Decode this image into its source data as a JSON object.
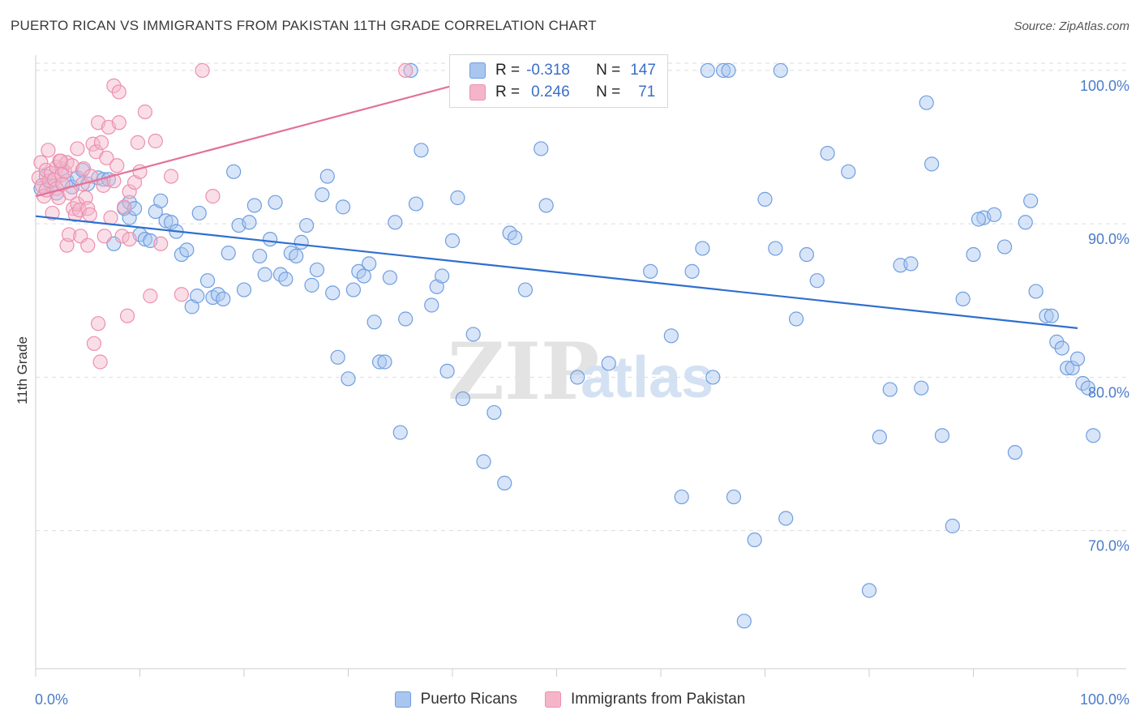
{
  "header": {
    "title": "PUERTO RICAN VS IMMIGRANTS FROM PAKISTAN 11TH GRADE CORRELATION CHART",
    "source": "Source: ZipAtlas.com"
  },
  "watermark": {
    "part1": "ZIP",
    "part2": "atlas"
  },
  "legend": {
    "rows": [
      {
        "r_label": "R =",
        "r_value": "-0.318",
        "n_label": "N =",
        "n_value": "147"
      },
      {
        "r_label": "R =",
        "r_value": "0.246",
        "n_label": "N =",
        "n_value": "71"
      }
    ]
  },
  "bottom_legend": {
    "items": [
      {
        "label": "Puerto Ricans"
      },
      {
        "label": "Immigrants from Pakistan"
      }
    ]
  },
  "colors": {
    "blue_fill": "#a9c6ef",
    "blue_stroke": "#6f9ee0",
    "blue_line": "#2f6fcf",
    "pink_fill": "#f5b5c9",
    "pink_stroke": "#ec8fae",
    "pink_line": "#e3719a",
    "grid": "#dddddd",
    "tick_text": "#4a7cc9"
  },
  "chart_data": {
    "type": "scatter",
    "ylabel": "11th Grade",
    "xlim": [
      0,
      100
    ],
    "ylim": [
      61,
      101
    ],
    "x_tick_labels": {
      "min": "0.0%",
      "max": "100.0%"
    },
    "y_ticks": [
      {
        "value": 100,
        "label": "100.0%"
      },
      {
        "value": 90,
        "label": "90.0%"
      },
      {
        "value": 80,
        "label": "80.0%"
      },
      {
        "value": 70,
        "label": "70.0%"
      }
    ],
    "grid": true,
    "series": [
      {
        "name": "Puerto Ricans",
        "r": -0.318,
        "n": 147,
        "trend": {
          "x0": 0,
          "y0": 90.5,
          "x1": 100,
          "y1": 83.2
        },
        "points": [
          [
            0.5,
            92.3
          ],
          [
            1,
            93.1
          ],
          [
            1.5,
            92.5
          ],
          [
            2,
            92.0
          ],
          [
            2.5,
            93.6
          ],
          [
            3,
            92.8
          ],
          [
            3.5,
            92.4
          ],
          [
            4,
            93.0
          ],
          [
            4.5,
            93.5
          ],
          [
            5,
            92.6
          ],
          [
            6,
            93.0
          ],
          [
            6.5,
            92.9
          ],
          [
            7,
            92.9
          ],
          [
            7.5,
            88.7
          ],
          [
            8.5,
            91.0
          ],
          [
            9,
            90.4
          ],
          [
            9,
            91.4
          ],
          [
            9.5,
            91.0
          ],
          [
            10,
            89.3
          ],
          [
            10.5,
            89.0
          ],
          [
            11,
            88.9
          ],
          [
            11.5,
            90.8
          ],
          [
            12,
            91.5
          ],
          [
            12.5,
            90.2
          ],
          [
            13,
            90.1
          ],
          [
            13.5,
            89.5
          ],
          [
            14,
            88.0
          ],
          [
            14.5,
            88.3
          ],
          [
            15,
            84.6
          ],
          [
            15.5,
            85.3
          ],
          [
            15.7,
            90.7
          ],
          [
            16.5,
            86.3
          ],
          [
            17,
            85.2
          ],
          [
            17.5,
            85.4
          ],
          [
            18,
            85.1
          ],
          [
            18.5,
            88.1
          ],
          [
            19,
            93.4
          ],
          [
            19.5,
            89.9
          ],
          [
            20,
            85.7
          ],
          [
            20.5,
            90.1
          ],
          [
            21,
            91.2
          ],
          [
            21.5,
            87.9
          ],
          [
            22,
            86.7
          ],
          [
            22.5,
            89.0
          ],
          [
            23,
            91.4
          ],
          [
            23.5,
            86.7
          ],
          [
            24,
            86.4
          ],
          [
            24.5,
            88.1
          ],
          [
            25,
            87.9
          ],
          [
            25.5,
            88.8
          ],
          [
            26,
            89.9
          ],
          [
            26.5,
            86.0
          ],
          [
            27,
            87.0
          ],
          [
            27.5,
            91.9
          ],
          [
            28,
            93.1
          ],
          [
            28.5,
            85.5
          ],
          [
            29,
            81.3
          ],
          [
            29.5,
            91.1
          ],
          [
            30,
            79.9
          ],
          [
            30.5,
            85.7
          ],
          [
            31,
            86.9
          ],
          [
            31.5,
            86.6
          ],
          [
            32,
            87.4
          ],
          [
            32.5,
            83.6
          ],
          [
            33,
            81.0
          ],
          [
            33.5,
            81.0
          ],
          [
            34,
            86.5
          ],
          [
            34.5,
            90.1
          ],
          [
            35,
            76.4
          ],
          [
            35.5,
            83.8
          ],
          [
            36,
            100
          ],
          [
            36.5,
            91.3
          ],
          [
            37,
            94.8
          ],
          [
            38,
            84.7
          ],
          [
            38.5,
            85.9
          ],
          [
            39,
            86.6
          ],
          [
            39.5,
            80.4
          ],
          [
            40,
            88.9
          ],
          [
            40.5,
            91.7
          ],
          [
            41,
            78.6
          ],
          [
            42,
            82.8
          ],
          [
            43,
            74.5
          ],
          [
            44,
            77.7
          ],
          [
            45,
            73.1
          ],
          [
            45.5,
            89.4
          ],
          [
            46,
            89.1
          ],
          [
            47,
            85.7
          ],
          [
            48,
            100
          ],
          [
            48.5,
            94.9
          ],
          [
            49,
            91.2
          ],
          [
            51,
            100
          ],
          [
            52,
            80.0
          ],
          [
            53,
            100
          ],
          [
            55,
            80.9
          ],
          [
            58,
            100
          ],
          [
            59,
            86.9
          ],
          [
            60,
            100
          ],
          [
            61,
            82.7
          ],
          [
            62,
            72.2
          ],
          [
            63,
            86.9
          ],
          [
            64,
            88.4
          ],
          [
            65,
            80.0
          ],
          [
            66,
            100
          ],
          [
            67,
            72.2
          ],
          [
            68,
            64.1
          ],
          [
            69,
            69.4
          ],
          [
            70,
            91.6
          ],
          [
            71,
            88.4
          ],
          [
            72,
            70.8
          ],
          [
            73,
            83.8
          ],
          [
            74,
            88.0
          ],
          [
            75,
            86.3
          ],
          [
            76,
            94.6
          ],
          [
            78,
            93.4
          ],
          [
            80,
            66.1
          ],
          [
            81,
            76.1
          ],
          [
            82,
            79.2
          ],
          [
            83,
            87.3
          ],
          [
            84,
            87.4
          ],
          [
            85,
            79.3
          ],
          [
            86,
            93.9
          ],
          [
            87,
            76.2
          ],
          [
            88,
            70.3
          ],
          [
            89,
            85.1
          ],
          [
            90,
            88.0
          ],
          [
            91,
            90.4
          ],
          [
            92,
            90.6
          ],
          [
            93,
            88.5
          ],
          [
            94,
            75.1
          ],
          [
            95,
            90.1
          ],
          [
            95.5,
            91.5
          ],
          [
            96,
            85.6
          ],
          [
            97,
            84.0
          ],
          [
            97.5,
            84.0
          ],
          [
            98,
            82.3
          ],
          [
            98.5,
            81.9
          ],
          [
            99,
            80.6
          ],
          [
            99.5,
            80.6
          ],
          [
            100,
            81.2
          ],
          [
            100.5,
            79.6
          ],
          [
            101,
            79.3
          ],
          [
            101.5,
            76.2
          ],
          [
            85.5,
            97.9
          ],
          [
            71.5,
            100
          ],
          [
            66.5,
            100
          ],
          [
            90.5,
            90.3
          ],
          [
            64.5,
            100
          ]
        ]
      },
      {
        "name": "Immigrants from Pakistan",
        "r": 0.246,
        "n": 71,
        "trend": {
          "x0": 0,
          "y0": 91.8,
          "x1": 40,
          "y1": 99.0
        },
        "points": [
          [
            0.3,
            93.0
          ],
          [
            0.5,
            94.0
          ],
          [
            0.6,
            92.5
          ],
          [
            0.8,
            91.8
          ],
          [
            1,
            92.2
          ],
          [
            1,
            93.5
          ],
          [
            1.2,
            94.8
          ],
          [
            1.3,
            92.8
          ],
          [
            1.5,
            93.3
          ],
          [
            1.6,
            90.7
          ],
          [
            1.8,
            92.9
          ],
          [
            2,
            93.7
          ],
          [
            2,
            92.3
          ],
          [
            2.2,
            91.7
          ],
          [
            2.3,
            94.1
          ],
          [
            2.5,
            93.2
          ],
          [
            2.6,
            92.6
          ],
          [
            2.8,
            93.4
          ],
          [
            3,
            94.0
          ],
          [
            3,
            88.6
          ],
          [
            3.2,
            89.3
          ],
          [
            3.3,
            92.0
          ],
          [
            3.5,
            93.8
          ],
          [
            3.6,
            91.0
          ],
          [
            3.8,
            90.6
          ],
          [
            4,
            91.3
          ],
          [
            4,
            94.9
          ],
          [
            4.2,
            90.9
          ],
          [
            4.3,
            89.2
          ],
          [
            4.5,
            92.6
          ],
          [
            4.6,
            93.6
          ],
          [
            4.8,
            91.7
          ],
          [
            5,
            91.0
          ],
          [
            5,
            88.6
          ],
          [
            5.2,
            90.6
          ],
          [
            5.3,
            93.1
          ],
          [
            5.5,
            95.2
          ],
          [
            5.6,
            82.2
          ],
          [
            5.8,
            94.7
          ],
          [
            6,
            96.6
          ],
          [
            6,
            83.5
          ],
          [
            6.2,
            81.0
          ],
          [
            6.3,
            95.3
          ],
          [
            6.5,
            92.5
          ],
          [
            6.6,
            89.2
          ],
          [
            6.8,
            94.3
          ],
          [
            7,
            96.3
          ],
          [
            7.2,
            90.4
          ],
          [
            7.5,
            92.8
          ],
          [
            7.5,
            99.0
          ],
          [
            7.8,
            93.8
          ],
          [
            8,
            98.6
          ],
          [
            8,
            96.6
          ],
          [
            8.3,
            89.2
          ],
          [
            8.5,
            91.1
          ],
          [
            8.8,
            84.0
          ],
          [
            9,
            92.1
          ],
          [
            9,
            89.0
          ],
          [
            9.5,
            92.7
          ],
          [
            9.8,
            95.3
          ],
          [
            10,
            93.4
          ],
          [
            10.5,
            97.3
          ],
          [
            11,
            85.3
          ],
          [
            11.5,
            95.4
          ],
          [
            12,
            88.7
          ],
          [
            13,
            93.1
          ],
          [
            14,
            85.4
          ],
          [
            16,
            100
          ],
          [
            17,
            91.8
          ],
          [
            2.4,
            94.1
          ],
          [
            35.5,
            100
          ]
        ]
      }
    ]
  }
}
